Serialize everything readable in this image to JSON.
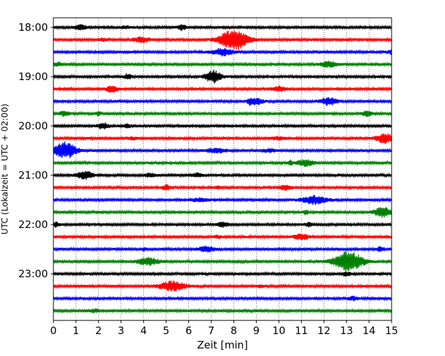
{
  "chart_data": {
    "type": "line",
    "title": "",
    "xlabel": "Zeit  [min]",
    "ylabel": "UTC (Lokalzeit = UTC + 02:00)",
    "xlim": [
      0,
      15
    ],
    "x_ticks": [
      "0",
      "1",
      "2",
      "3",
      "4",
      "5",
      "6",
      "7",
      "8",
      "9",
      "10",
      "11",
      "12",
      "13",
      "14",
      "15"
    ],
    "y_ticks": [
      "18:00",
      "19:00",
      "20:00",
      "21:00",
      "22:00",
      "23:00"
    ],
    "grid": "vertical dotted",
    "colors": [
      "#000000",
      "#ff0000",
      "#0000ff",
      "#008000"
    ],
    "traces": [
      {
        "start": "18:00",
        "color": "#000000",
        "events": [
          [
            1.2,
            0.25,
            0.6
          ],
          [
            5.7,
            0.2,
            0.7
          ],
          [
            3.2,
            0.2,
            0.3
          ]
        ]
      },
      {
        "start": "18:15",
        "color": "#ff0000",
        "events": [
          [
            8.0,
            0.6,
            2.8
          ],
          [
            3.9,
            0.3,
            0.8
          ],
          [
            2.2,
            0.2,
            0.3
          ]
        ]
      },
      {
        "start": "18:30",
        "color": "#0000ff",
        "events": [
          [
            7.5,
            0.45,
            0.9
          ],
          [
            15.0,
            0.2,
            0.5
          ]
        ]
      },
      {
        "start": "18:45",
        "color": "#008000",
        "events": [
          [
            12.2,
            0.35,
            0.7
          ],
          [
            0.2,
            0.2,
            0.4
          ]
        ]
      },
      {
        "start": "19:00",
        "color": "#000000",
        "events": [
          [
            7.1,
            0.35,
            1.6
          ],
          [
            3.3,
            0.15,
            0.7
          ]
        ]
      },
      {
        "start": "19:15",
        "color": "#ff0000",
        "events": [
          [
            2.6,
            0.25,
            0.8
          ],
          [
            10.0,
            0.3,
            0.6
          ]
        ]
      },
      {
        "start": "19:30",
        "color": "#0000ff",
        "events": [
          [
            12.2,
            0.35,
            1.0
          ],
          [
            9.0,
            0.3,
            0.8
          ],
          [
            8.7,
            0.1,
            0.6
          ]
        ]
      },
      {
        "start": "19:45",
        "color": "#008000",
        "events": [
          [
            0.5,
            0.2,
            0.7
          ],
          [
            13.9,
            0.2,
            0.7
          ],
          [
            2.0,
            0.1,
            0.5
          ]
        ]
      },
      {
        "start": "20:00",
        "color": "#000000",
        "events": [
          [
            2.2,
            0.25,
            0.8
          ],
          [
            3.3,
            0.2,
            0.4
          ]
        ]
      },
      {
        "start": "20:15",
        "color": "#ff0000",
        "events": [
          [
            14.7,
            0.35,
            1.3
          ],
          [
            10.0,
            0.3,
            0.4
          ],
          [
            3.5,
            0.2,
            0.3
          ]
        ]
      },
      {
        "start": "20:30",
        "color": "#0000ff",
        "events": [
          [
            0.5,
            0.5,
            2.2
          ],
          [
            7.2,
            0.4,
            0.6
          ],
          [
            9.6,
            0.3,
            0.4
          ]
        ]
      },
      {
        "start": "20:45",
        "color": "#008000",
        "events": [
          [
            11.2,
            0.35,
            0.9
          ],
          [
            10.5,
            0.1,
            0.6
          ]
        ]
      },
      {
        "start": "21:00",
        "color": "#000000",
        "events": [
          [
            1.4,
            0.35,
            1.0
          ],
          [
            4.3,
            0.2,
            0.5
          ],
          [
            6.4,
            0.25,
            0.5
          ]
        ]
      },
      {
        "start": "21:15",
        "color": "#ff0000",
        "events": [
          [
            5.0,
            0.2,
            0.6
          ],
          [
            10.3,
            0.25,
            0.6
          ],
          [
            7.3,
            0.1,
            0.3
          ]
        ]
      },
      {
        "start": "21:30",
        "color": "#0000ff",
        "events": [
          [
            11.6,
            0.55,
            1.1
          ],
          [
            6.5,
            0.4,
            0.4
          ]
        ]
      },
      {
        "start": "21:45",
        "color": "#008000",
        "events": [
          [
            14.6,
            0.35,
            1.3
          ],
          [
            11.2,
            0.1,
            0.6
          ]
        ]
      },
      {
        "start": "22:00",
        "color": "#000000",
        "events": [
          [
            0.1,
            0.15,
            0.6
          ],
          [
            7.5,
            0.25,
            0.6
          ],
          [
            11.3,
            0.15,
            0.5
          ]
        ]
      },
      {
        "start": "22:15",
        "color": "#ff0000",
        "events": [
          [
            11.0,
            0.3,
            0.8
          ],
          [
            7.3,
            0.2,
            0.3
          ]
        ]
      },
      {
        "start": "22:30",
        "color": "#0000ff",
        "events": [
          [
            6.8,
            0.35,
            0.7
          ],
          [
            14.5,
            0.15,
            0.6
          ],
          [
            4.0,
            0.1,
            0.4
          ]
        ]
      },
      {
        "start": "22:45",
        "color": "#008000",
        "events": [
          [
            13.1,
            0.6,
            2.8
          ],
          [
            4.2,
            0.45,
            1.0
          ]
        ]
      },
      {
        "start": "23:00",
        "color": "#000000",
        "events": [
          [
            13.0,
            0.2,
            0.5
          ]
        ]
      },
      {
        "start": "23:15",
        "color": "#ff0000",
        "events": [
          [
            5.3,
            0.55,
            1.3
          ],
          [
            9.2,
            0.2,
            0.3
          ]
        ]
      },
      {
        "start": "23:30",
        "color": "#0000ff",
        "events": [
          [
            13.3,
            0.2,
            0.5
          ]
        ]
      },
      {
        "start": "23:45",
        "color": "#008000",
        "events": [
          [
            1.8,
            0.3,
            0.3
          ]
        ]
      }
    ]
  }
}
